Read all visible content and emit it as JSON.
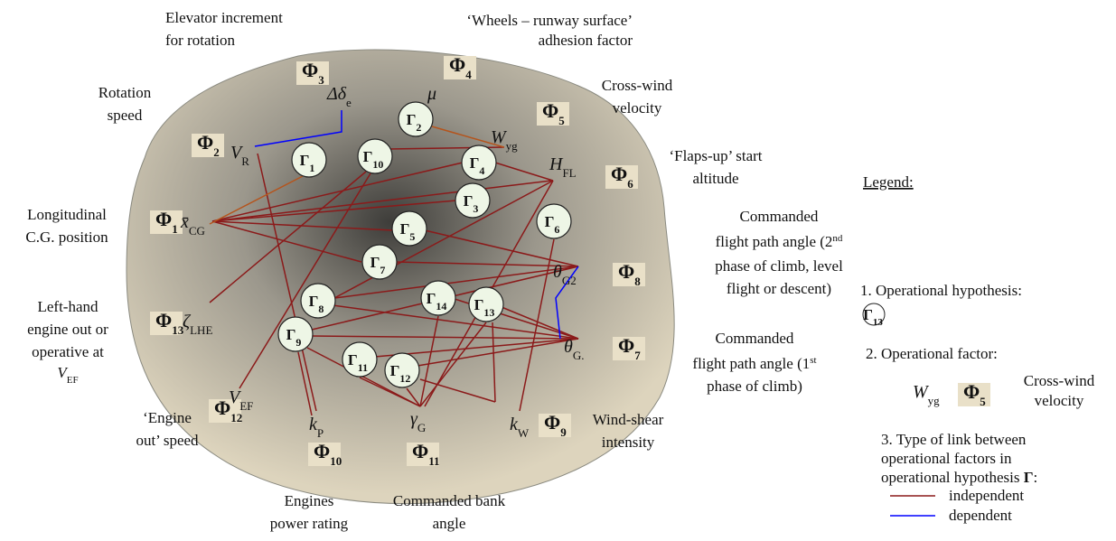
{
  "factors": [
    {
      "symbol": "Φ",
      "index": "3"
    },
    {
      "symbol": "Φ",
      "index": "4"
    },
    {
      "symbol": "Φ",
      "index": "5"
    },
    {
      "symbol": "Φ",
      "index": "2"
    },
    {
      "symbol": "Φ",
      "index": "6"
    },
    {
      "symbol": "Φ",
      "index": "1"
    },
    {
      "symbol": "Φ",
      "index": "8"
    },
    {
      "symbol": "Φ",
      "index": "13"
    },
    {
      "symbol": "Φ",
      "index": "7"
    },
    {
      "symbol": "Φ",
      "index": "12"
    },
    {
      "symbol": "Φ",
      "index": "9"
    },
    {
      "symbol": "Φ",
      "index": "10"
    },
    {
      "symbol": "Φ",
      "index": "11"
    }
  ],
  "variables": [
    {
      "symbol": "Δδ",
      "sub": "e"
    },
    {
      "symbol": "μ",
      "sub": ""
    },
    {
      "symbol": "W",
      "sub": "yg"
    },
    {
      "symbol": "V",
      "sub": "R"
    },
    {
      "symbol": "H",
      "sub": "FL"
    },
    {
      "symbol": "x̄",
      "sub": "CG"
    },
    {
      "symbol": "θ",
      "sub": "G2"
    },
    {
      "symbol": "ζ",
      "sub": "LHE"
    },
    {
      "symbol": "θ",
      "sub": "G."
    },
    {
      "symbol": "V",
      "sub": "EF"
    },
    {
      "symbol": "k",
      "sub": "P"
    },
    {
      "symbol": "γ",
      "sub": "G"
    },
    {
      "symbol": "k",
      "sub": "W"
    }
  ],
  "hypotheses": [
    {
      "symbol": "Γ",
      "index": "1"
    },
    {
      "symbol": "Γ",
      "index": "2"
    },
    {
      "symbol": "Γ",
      "index": "10"
    },
    {
      "symbol": "Γ",
      "index": "4"
    },
    {
      "symbol": "Γ",
      "index": "3"
    },
    {
      "symbol": "Γ",
      "index": "6"
    },
    {
      "symbol": "Γ",
      "index": "5"
    },
    {
      "symbol": "Γ",
      "index": "7"
    },
    {
      "symbol": "Γ",
      "index": "8"
    },
    {
      "symbol": "Γ",
      "index": "14"
    },
    {
      "symbol": "Γ",
      "index": "13"
    },
    {
      "symbol": "Γ",
      "index": "9"
    },
    {
      "symbol": "Γ",
      "index": "11"
    },
    {
      "symbol": "Γ",
      "index": "12"
    }
  ],
  "descriptions": [
    [
      [
        "Elevator increment"
      ],
      [
        "for rotation"
      ]
    ],
    [
      [
        "‘Wheels – runway surface’"
      ],
      [
        "adhesion factor"
      ]
    ],
    [
      [
        "Cross-wind"
      ],
      [
        "velocity"
      ]
    ],
    [
      [
        "Rotation"
      ],
      [
        "speed"
      ]
    ],
    [
      [
        "‘Flaps-up’ start"
      ],
      [
        "altitude"
      ]
    ],
    [
      [
        "Longitudinal"
      ],
      [
        "C.G. position"
      ]
    ],
    [
      [
        "Commanded"
      ],
      [
        "flight path angle (2",
        {
          "sup": "nd"
        }
      ],
      [
        "phase of climb, level"
      ],
      [
        "flight or descent)"
      ]
    ],
    [
      [
        "Left-hand"
      ],
      [
        "engine out or"
      ],
      [
        "operative at"
      ],
      [
        {
          "i": "V"
        },
        {
          "sub": "EF"
        }
      ]
    ],
    [
      [
        "Commanded"
      ],
      [
        "flight path angle (1",
        {
          "sup": "st"
        }
      ],
      [
        "phase of climb)"
      ]
    ],
    [
      [
        "‘Engine"
      ],
      [
        "out’ speed"
      ]
    ],
    [
      [
        "Wind-shear"
      ],
      [
        "intensity"
      ]
    ],
    [
      [
        "Engines"
      ],
      [
        "power rating"
      ]
    ],
    [
      [
        "Commanded bank"
      ],
      [
        "angle"
      ]
    ]
  ],
  "legend": {
    "title": "Legend:",
    "item1": "1. Operational hypothesis:",
    "hypothesis": {
      "symbol": "Γ",
      "index": "13"
    },
    "item2": "2. Operational factor:",
    "variable": {
      "symbol": "W",
      "sub": "yg"
    },
    "factor": {
      "symbol": "Φ",
      "index": "5"
    },
    "factor_description": [
      "Cross-wind",
      "velocity"
    ],
    "item3": [
      "3. Type of link between",
      "operational factors in",
      "operational hypothesis "
    ],
    "item3_symbol": "Γ",
    "item3_end": ":",
    "links": [
      {
        "label": "independent",
        "color": "#8b1a1a"
      },
      {
        "label": "dependent",
        "color": "#0000ff"
      }
    ]
  }
}
